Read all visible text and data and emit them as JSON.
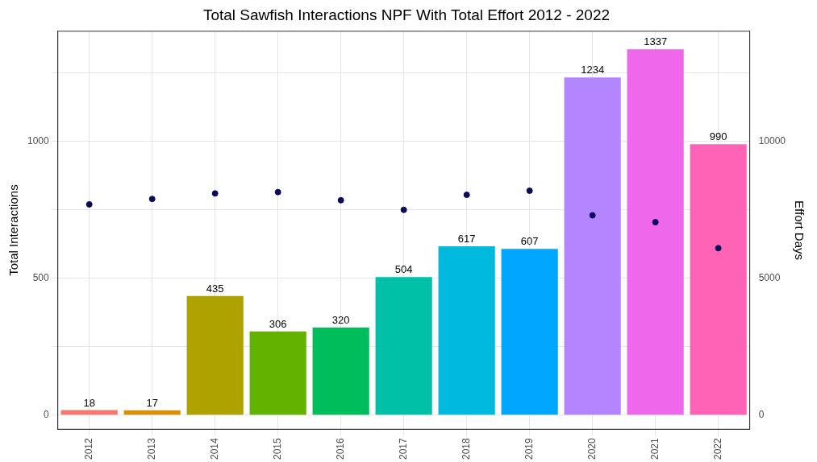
{
  "chart_data": {
    "type": "bar",
    "title": "Total Sawfish Interactions NPF With Total Effort 2012 - 2022",
    "xlabel": null,
    "ylabel": "Total Interactions",
    "y2label": "Effort Days",
    "categories": [
      "2012",
      "2013",
      "2014",
      "2015",
      "2016",
      "2017",
      "2018",
      "2019",
      "2020",
      "2021",
      "2022"
    ],
    "series": [
      {
        "colors": [
          "#f8766d",
          "#db8e00",
          "#aea200",
          "#64b200",
          "#00bd5c",
          "#00c1a7",
          "#00bade",
          "#00a6ff",
          "#b385ff",
          "#ef67eb",
          "#ff63b6"
        ],
        "values": [
          18,
          17,
          435,
          306,
          320,
          504,
          617,
          607,
          1234,
          1337,
          990
        ],
        "value_labels": [
          "18",
          "17",
          "435",
          "306",
          "320",
          "504",
          "617",
          "607",
          "1234",
          "1337",
          "990"
        ]
      },
      {
        "type": "scatter",
        "axis": "y2",
        "color": "#0a0a5a",
        "values": [
          7700,
          7900,
          8100,
          8150,
          7850,
          7500,
          8050,
          8200,
          7300,
          7050,
          6100
        ]
      }
    ],
    "ylim": [
      -52,
      1403
    ],
    "yticks": [
      0,
      {
        "value": 250,
        "label": null
      },
      500,
      {
        "value": 750,
        "label": null
      },
      1000,
      {
        "value": 1250,
        "label": null
      }
    ],
    "y2lim": [
      -520,
      14030
    ],
    "y2ticks": [
      0,
      5000,
      10000
    ],
    "grid": true,
    "legend": false,
    "marker": "circle"
  }
}
